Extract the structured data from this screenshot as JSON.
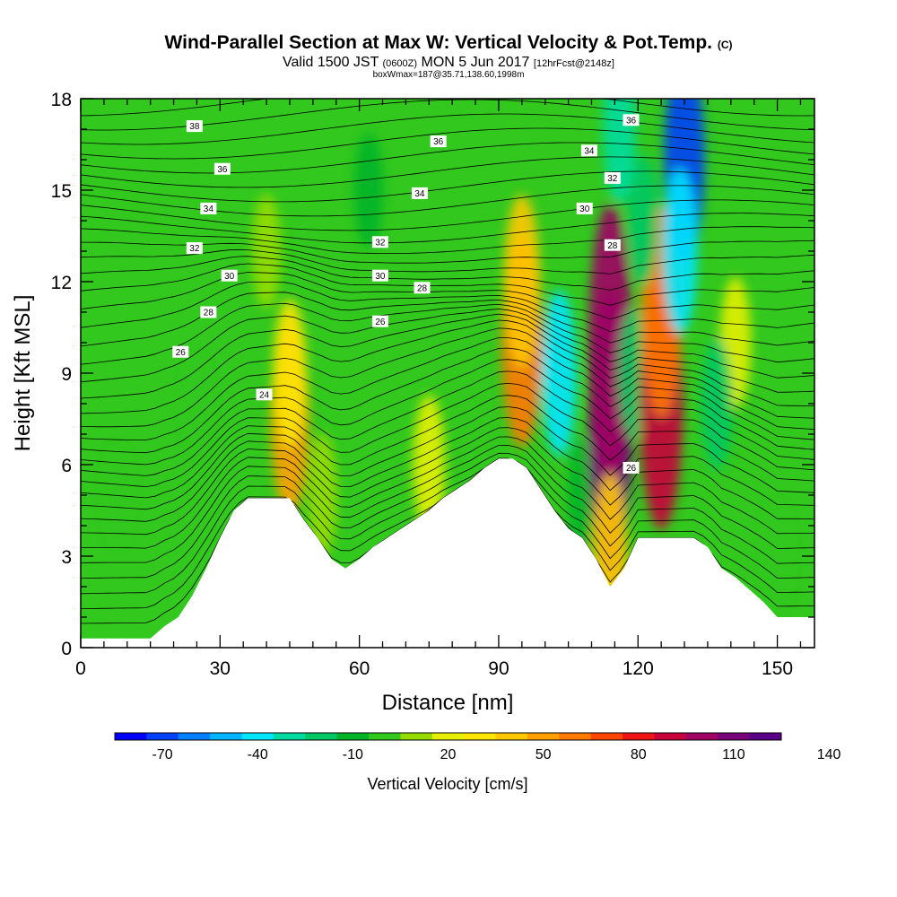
{
  "title": {
    "main": "Wind-Parallel Section at Max W: Vertical Velocity & Pot.Temp.",
    "mark": "(C)",
    "line2_pre": "Valid 1500 JST",
    "line2_small": "(0600Z)",
    "line2_mid": "MON 5 Jun 2017",
    "line2_tail": "[12hrFcst@2148z]",
    "line3": "boxWmax=187@35.71,138.60,1998m"
  },
  "chart_data": {
    "type": "heatmap",
    "xlabel": "Distance [nm]",
    "ylabel": "Height [Kft MSL]",
    "xlim": [
      0,
      158
    ],
    "ylim": [
      0,
      18
    ],
    "x_ticks": [
      0,
      30,
      60,
      90,
      120,
      150
    ],
    "y_ticks": [
      0,
      3,
      6,
      9,
      12,
      15,
      18
    ],
    "grid": false,
    "colorbar": {
      "label": "Vertical Velocity [cm/s]",
      "tick_values": [
        -70,
        -40,
        -10,
        20,
        50,
        80,
        110,
        140
      ],
      "colors": [
        "#0000ff",
        "#0040f8",
        "#0080ff",
        "#00b4ff",
        "#00e6ff",
        "#00dca0",
        "#00c864",
        "#00b428",
        "#32c81e",
        "#96dc00",
        "#e6f000",
        "#ffe600",
        "#ffc800",
        "#ffa000",
        "#ff7800",
        "#ff4600",
        "#f01414",
        "#c8003c",
        "#a00064",
        "#780078",
        "#5a0088"
      ]
    },
    "velocity_field_cm_s": [
      {
        "x": 8,
        "z": 5,
        "w": 0
      },
      {
        "x": 25,
        "z": 8,
        "w": 0
      },
      {
        "x": 45,
        "z": 7.5,
        "w": 55
      },
      {
        "x": 45,
        "z": 9,
        "w": 30
      },
      {
        "x": 52,
        "z": 5,
        "w": 15
      },
      {
        "x": 75,
        "z": 6,
        "w": 25
      },
      {
        "x": 95,
        "z": 10,
        "w": 65
      },
      {
        "x": 95,
        "z": 12,
        "w": 45
      },
      {
        "x": 103,
        "z": 9,
        "w": -40
      },
      {
        "x": 108,
        "z": 5,
        "w": -10
      },
      {
        "x": 114,
        "z": 7,
        "w": 115
      },
      {
        "x": 114,
        "z": 10,
        "w": 105
      },
      {
        "x": 114,
        "z": 3,
        "w": 40
      },
      {
        "x": 119,
        "z": 9,
        "w": -20
      },
      {
        "x": 125,
        "z": 8,
        "w": 90
      },
      {
        "x": 125,
        "z": 11,
        "w": 65
      },
      {
        "x": 130,
        "z": 16,
        "w": -65
      },
      {
        "x": 129,
        "z": 13,
        "w": -40
      },
      {
        "x": 121,
        "z": 14,
        "w": -20
      },
      {
        "x": 116,
        "z": 17,
        "w": -30
      },
      {
        "x": 141,
        "z": 10,
        "w": 20
      },
      {
        "x": 137,
        "z": 8,
        "w": -20
      },
      {
        "x": 62,
        "z": 15,
        "w": -10
      },
      {
        "x": 40,
        "z": 13,
        "w": 10
      },
      {
        "x": 150,
        "z": 3,
        "w": 5
      }
    ],
    "terrain_kft": [
      {
        "x": 0,
        "z": 0.3
      },
      {
        "x": 15,
        "z": 0.3
      },
      {
        "x": 18,
        "z": 0.7
      },
      {
        "x": 21,
        "z": 1.0
      },
      {
        "x": 24,
        "z": 1.7
      },
      {
        "x": 27,
        "z": 2.6
      },
      {
        "x": 30,
        "z": 3.6
      },
      {
        "x": 33,
        "z": 4.5
      },
      {
        "x": 36,
        "z": 4.9
      },
      {
        "x": 39,
        "z": 4.9
      },
      {
        "x": 42,
        "z": 4.9
      },
      {
        "x": 45,
        "z": 4.9
      },
      {
        "x": 48,
        "z": 4.2
      },
      {
        "x": 51,
        "z": 3.6
      },
      {
        "x": 54,
        "z": 2.9
      },
      {
        "x": 57,
        "z": 2.6
      },
      {
        "x": 60,
        "z": 2.9
      },
      {
        "x": 63,
        "z": 3.3
      },
      {
        "x": 66,
        "z": 3.6
      },
      {
        "x": 69,
        "z": 3.9
      },
      {
        "x": 72,
        "z": 4.2
      },
      {
        "x": 75,
        "z": 4.5
      },
      {
        "x": 78,
        "z": 4.9
      },
      {
        "x": 81,
        "z": 5.2
      },
      {
        "x": 84,
        "z": 5.5
      },
      {
        "x": 87,
        "z": 5.9
      },
      {
        "x": 90,
        "z": 6.2
      },
      {
        "x": 93,
        "z": 6.2
      },
      {
        "x": 96,
        "z": 5.9
      },
      {
        "x": 99,
        "z": 5.2
      },
      {
        "x": 102,
        "z": 4.5
      },
      {
        "x": 105,
        "z": 3.9
      },
      {
        "x": 108,
        "z": 3.6
      },
      {
        "x": 111,
        "z": 2.9
      },
      {
        "x": 114,
        "z": 2.0
      },
      {
        "x": 117,
        "z": 2.6
      },
      {
        "x": 120,
        "z": 3.6
      },
      {
        "x": 123,
        "z": 3.6
      },
      {
        "x": 126,
        "z": 3.6
      },
      {
        "x": 129,
        "z": 3.6
      },
      {
        "x": 132,
        "z": 3.6
      },
      {
        "x": 135,
        "z": 3.3
      },
      {
        "x": 138,
        "z": 2.6
      },
      {
        "x": 141,
        "z": 2.3
      },
      {
        "x": 144,
        "z": 1.9
      },
      {
        "x": 147,
        "z": 1.5
      },
      {
        "x": 150,
        "z": 1.0
      },
      {
        "x": 153,
        "z": 1.0
      },
      {
        "x": 158,
        "z": 1.0
      }
    ],
    "theta_contour_labels": [
      {
        "text": "38",
        "x": 24.5,
        "z": 17.1
      },
      {
        "text": "36",
        "x": 30.5,
        "z": 15.7
      },
      {
        "text": "34",
        "x": 27.5,
        "z": 14.4
      },
      {
        "text": "32",
        "x": 24.5,
        "z": 13.1
      },
      {
        "text": "30",
        "x": 32,
        "z": 12.2
      },
      {
        "text": "28",
        "x": 27.5,
        "z": 11.0
      },
      {
        "text": "26",
        "x": 21.5,
        "z": 9.7
      },
      {
        "text": "24",
        "x": 39.5,
        "z": 8.3
      },
      {
        "text": "32",
        "x": 64.5,
        "z": 13.3
      },
      {
        "text": "30",
        "x": 64.5,
        "z": 12.2
      },
      {
        "text": "28",
        "x": 73.5,
        "z": 11.8
      },
      {
        "text": "26",
        "x": 64.5,
        "z": 10.7
      },
      {
        "text": "36",
        "x": 77,
        "z": 16.6
      },
      {
        "text": "34",
        "x": 73,
        "z": 14.9
      },
      {
        "text": "34",
        "x": 109.5,
        "z": 16.3
      },
      {
        "text": "32",
        "x": 114.5,
        "z": 15.4
      },
      {
        "text": "30",
        "x": 108.5,
        "z": 14.4
      },
      {
        "text": "28",
        "x": 114.5,
        "z": 13.2
      },
      {
        "text": "36",
        "x": 118.5,
        "z": 17.3
      },
      {
        "text": "26",
        "x": 118.5,
        "z": 5.9
      }
    ]
  }
}
